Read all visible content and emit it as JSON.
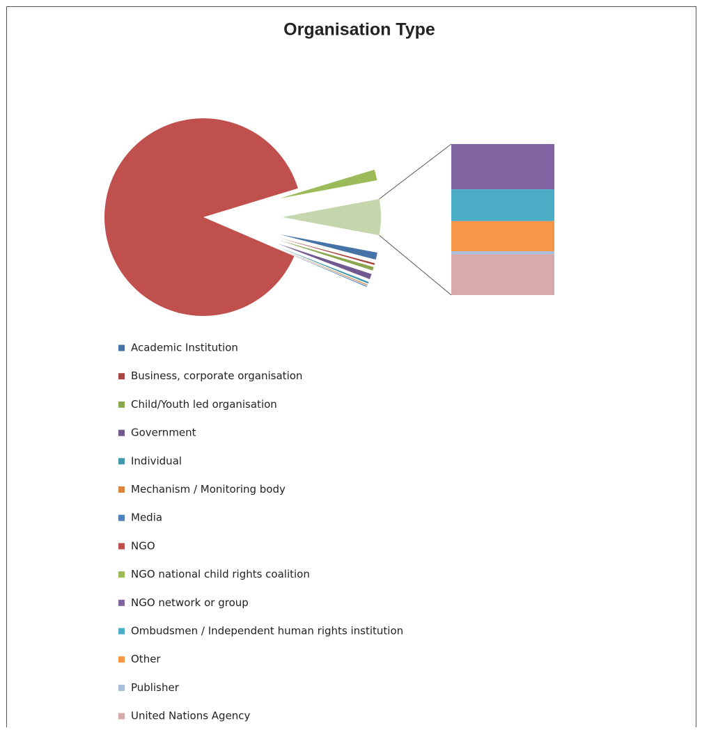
{
  "chart_data": {
    "type": "bar-of-pie",
    "title": "Organisation Type",
    "series": [
      {
        "name": "Academic Institution",
        "color": "#4572a7",
        "values": [
          4
        ]
      },
      {
        "name": "Business, corporate organisation",
        "color": "#aa4643",
        "values": [
          1
        ]
      },
      {
        "name": "Child/Youth led organisation",
        "color": "#89a54e",
        "values": [
          2
        ]
      },
      {
        "name": "Government",
        "color": "#71588f",
        "values": [
          3
        ]
      },
      {
        "name": "Individual",
        "color": "#4198af",
        "values": [
          1
        ]
      },
      {
        "name": "Mechanism / Monitoring body",
        "color": "#db843d",
        "values": [
          0.5
        ]
      },
      {
        "name": "Media",
        "color": "#4f81bd",
        "values": [
          0.5
        ]
      },
      {
        "name": "NGO",
        "color": "#c0504d",
        "values": [
          302
        ]
      },
      {
        "name": "NGO national child rights coalition",
        "color": "#9bbb59",
        "values": [
          6
        ]
      },
      {
        "name": "NGO network or group",
        "color": "#8064a2",
        "values": [
          6
        ]
      },
      {
        "name": "Ombudsmen / Independent human rights institution",
        "color": "#4bacc6",
        "values": [
          4.2
        ]
      },
      {
        "name": "Other",
        "color": "#f79646",
        "values": [
          4
        ]
      },
      {
        "name": "Publisher",
        "color": "#a9bcd9",
        "values": [
          0.4
        ]
      },
      {
        "name": "United Nations Agency",
        "color": "#d9aaaa",
        "values": [
          5.4
        ]
      }
    ]
  }
}
